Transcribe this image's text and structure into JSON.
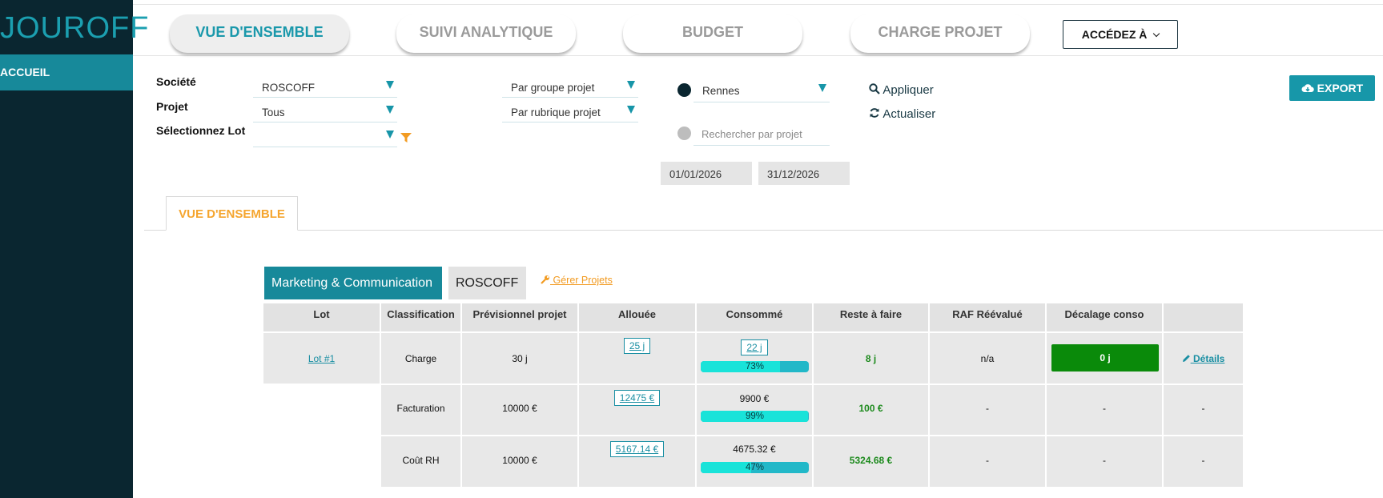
{
  "sidebar": {
    "logo": "JOUROFF",
    "items": [
      {
        "label": "ACCUEIL"
      }
    ]
  },
  "nav": {
    "tabs": [
      {
        "label": "VUE D'ENSEMBLE",
        "active": true
      },
      {
        "label": "SUIVI ANALYTIQUE",
        "active": false
      },
      {
        "label": "BUDGET",
        "active": false
      },
      {
        "label": "CHARGE PROJET",
        "active": false
      }
    ],
    "access_label": "ACCÉDEZ À"
  },
  "filters": {
    "societe_label": "Société",
    "societe_value": "ROSCOFF",
    "projet_label": "Projet",
    "projet_value": "Tous",
    "lot_label": "Sélectionnez Lot",
    "lot_value": "",
    "groupe_value": "Par groupe projet",
    "rubrique_value": "Par rubrique projet",
    "ville_value": "Rennes",
    "search_placeholder": "Rechercher par projet",
    "date_start": "01/01/2026",
    "date_end": "31/12/2026",
    "apply_label": "Appliquer",
    "refresh_label": "Actualiser",
    "export_label": "EXPORT"
  },
  "section": {
    "tab_label": "VUE D'ENSEMBLE"
  },
  "group": {
    "name": "Marketing & Communication",
    "company": "ROSCOFF",
    "manage_label": "Gérer Projets"
  },
  "table": {
    "headers": [
      "Lot",
      "Classification",
      "Prévisionnel projet",
      "Allouée",
      "Consommé",
      "Reste à faire",
      "RAF Réévalué",
      "Décalage conso",
      ""
    ],
    "lot": "Lot #1",
    "rows": [
      {
        "classification": "Charge",
        "previsionnel": "30 j",
        "allouee": "25 j",
        "consomme": "22 j",
        "consomme_link": true,
        "pct": "73%",
        "pct_value": 73,
        "reste": "8 j",
        "raf": "n/a",
        "decalage": "0 j",
        "details": "Détails"
      },
      {
        "classification": "Facturation",
        "previsionnel": "10000 €",
        "allouee": "12475 €",
        "consomme": "9900 €",
        "consomme_link": false,
        "pct": "99%",
        "pct_value": 99,
        "reste": "100 €",
        "raf": "-",
        "decalage": "-",
        "details": "-"
      },
      {
        "classification": "Coût RH",
        "previsionnel": "10000 €",
        "allouee": "5167.14 €",
        "consomme": "4675.32 €",
        "consomme_link": false,
        "pct": "47%",
        "pct_value": 47,
        "reste": "5324.68 €",
        "raf": "-",
        "decalage": "-",
        "details": "-"
      }
    ]
  },
  "colors": {
    "sidebar": "#0a2630",
    "accent": "#17899a",
    "orange": "#f5a52e",
    "green": "#0a8a0a"
  }
}
